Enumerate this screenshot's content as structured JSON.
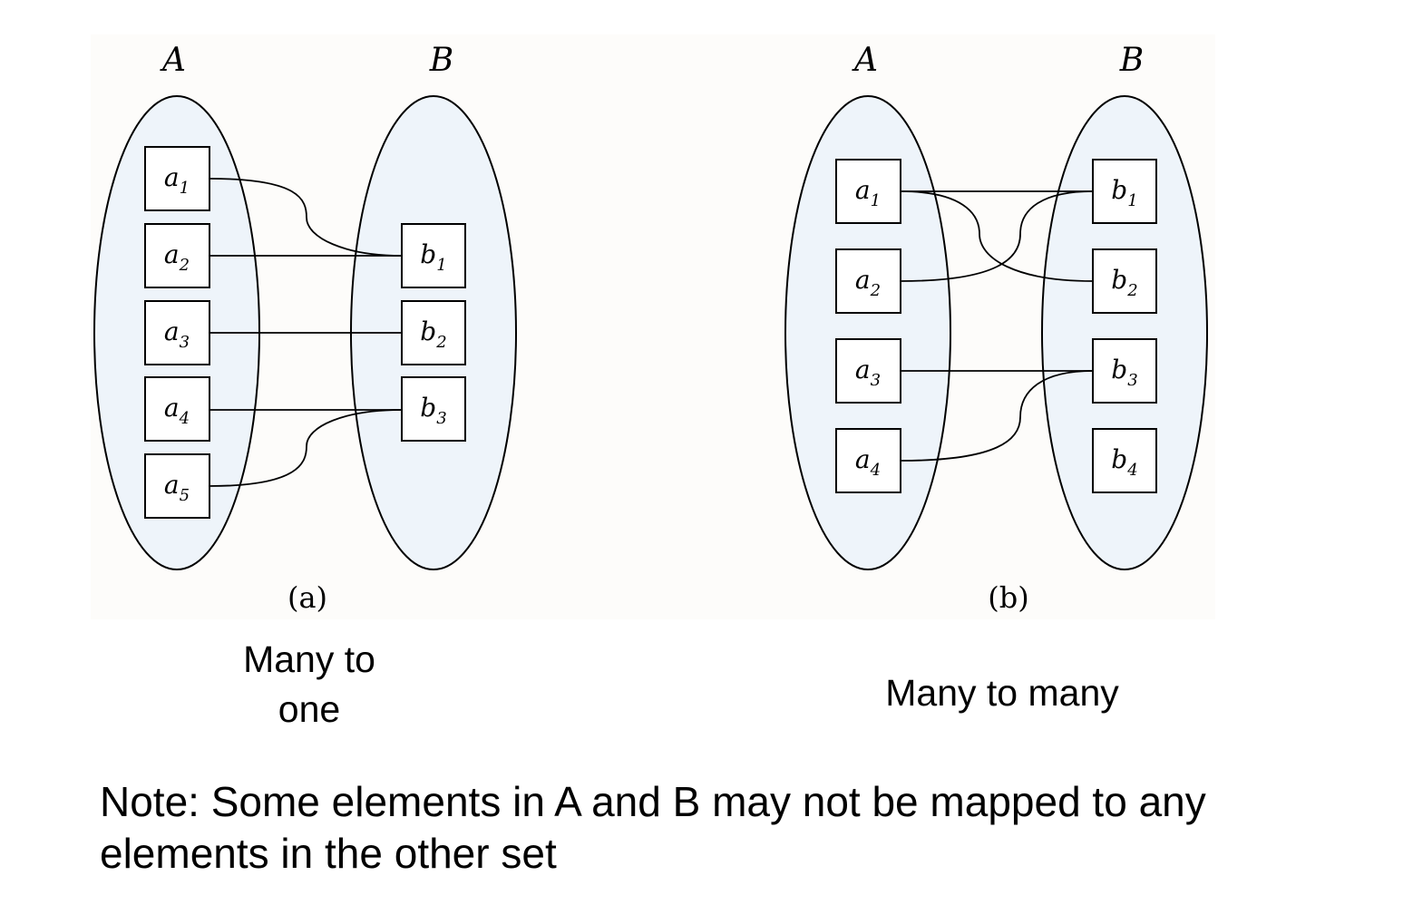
{
  "panels": [
    {
      "label": "(a)",
      "caption_lines": [
        "Many to",
        "one"
      ],
      "sets": [
        {
          "name": "A",
          "elements": [
            {
              "letter": "a",
              "sub": "1"
            },
            {
              "letter": "a",
              "sub": "2"
            },
            {
              "letter": "a",
              "sub": "3"
            },
            {
              "letter": "a",
              "sub": "4"
            },
            {
              "letter": "a",
              "sub": "5"
            }
          ]
        },
        {
          "name": "B",
          "elements": [
            {
              "letter": "b",
              "sub": "1"
            },
            {
              "letter": "b",
              "sub": "2"
            },
            {
              "letter": "b",
              "sub": "3"
            }
          ]
        }
      ],
      "mappings": [
        [
          "a1",
          "b1"
        ],
        [
          "a2",
          "b1"
        ],
        [
          "a3",
          "b2"
        ],
        [
          "a4",
          "b3"
        ],
        [
          "a5",
          "b3"
        ]
      ]
    },
    {
      "label": "(b)",
      "caption_lines": [
        "Many to many"
      ],
      "sets": [
        {
          "name": "A",
          "elements": [
            {
              "letter": "a",
              "sub": "1"
            },
            {
              "letter": "a",
              "sub": "2"
            },
            {
              "letter": "a",
              "sub": "3"
            },
            {
              "letter": "a",
              "sub": "4"
            }
          ]
        },
        {
          "name": "B",
          "elements": [
            {
              "letter": "b",
              "sub": "1"
            },
            {
              "letter": "b",
              "sub": "2"
            },
            {
              "letter": "b",
              "sub": "3"
            },
            {
              "letter": "b",
              "sub": "4"
            }
          ]
        }
      ],
      "mappings": [
        [
          "a1",
          "b1"
        ],
        [
          "a1",
          "b2"
        ],
        [
          "a2",
          "b1"
        ],
        [
          "a3",
          "b3"
        ],
        [
          "a4",
          "b3"
        ]
      ]
    }
  ],
  "note_lines": [
    "Note: Some elements in A and B may not be mapped to any",
    "elements in the other set"
  ],
  "colors": {
    "set_fill": "#eef4fa",
    "figure_bg": "#fdfcfa",
    "stroke": "#000000"
  }
}
